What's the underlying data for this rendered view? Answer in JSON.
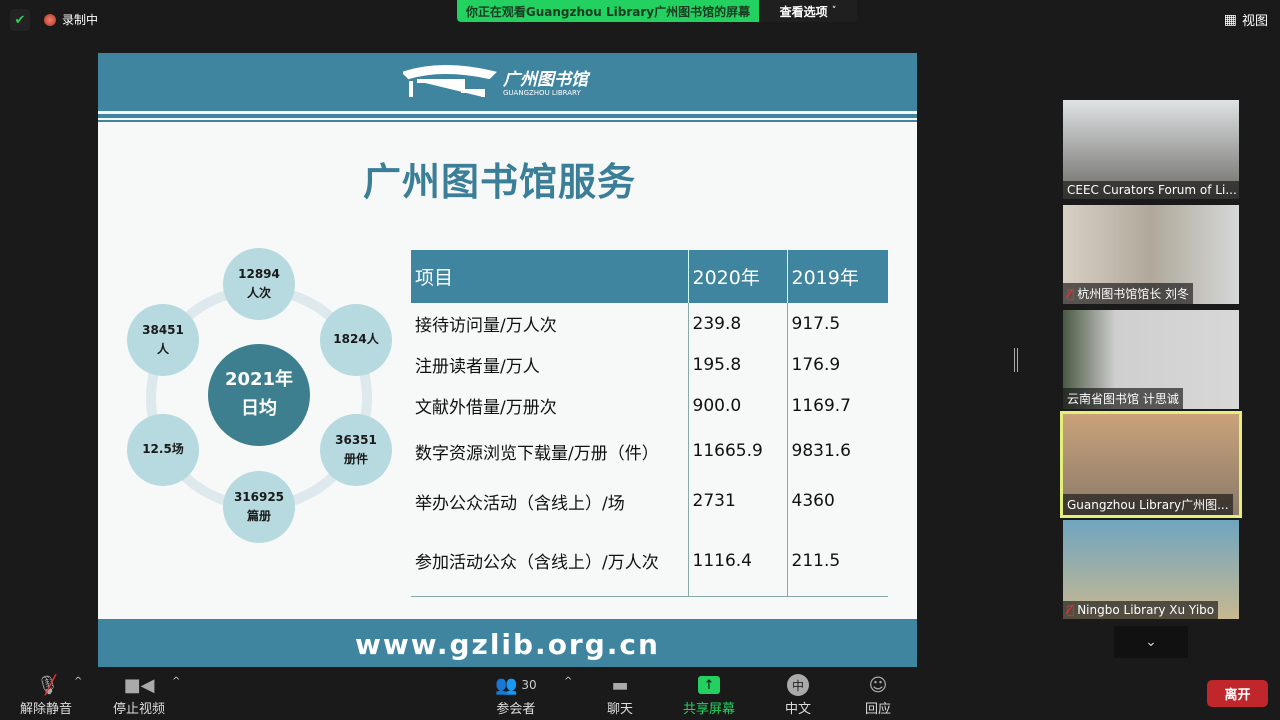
{
  "top": {
    "recording": "录制中",
    "banner": "你正在观看Guangzhou  Library广州图书馆的屏幕",
    "view_options": "查看选项",
    "view": "视图"
  },
  "slide": {
    "logo_cn": "广州图书馆",
    "logo_en": "GUANGZHOU LIBRARY",
    "title": "广州图书馆服务",
    "center": [
      "2021年",
      "日均"
    ],
    "circles": [
      [
        "12894",
        "人次"
      ],
      [
        "1824人",
        ""
      ],
      [
        "36351",
        "册件"
      ],
      [
        "316925",
        "篇册"
      ],
      [
        "12.5场",
        ""
      ],
      [
        "38451",
        "人"
      ]
    ],
    "table": {
      "headers": [
        "项目",
        "2020年",
        "2019年"
      ],
      "rows": [
        [
          "接待访问量/万人次",
          "239.8",
          "917.5"
        ],
        [
          "注册读者量/万人",
          "195.8",
          "176.9"
        ],
        [
          "文献外借量/万册次",
          "900.0",
          "1169.7"
        ],
        [
          "数字资源浏览下载量/万册（件）",
          "11665.9",
          "9831.6"
        ],
        [
          "举办公众活动（含线上）/场",
          "2731",
          "4360"
        ],
        [
          "参加活动公众（含线上）/万人次",
          "1116.4",
          "211.5"
        ]
      ]
    },
    "footer": "www.gzlib.org.cn"
  },
  "participants": [
    {
      "name": "CEEC Curators Forum of Li...",
      "muted": false
    },
    {
      "name": "杭州图书馆馆长 刘冬",
      "muted": true
    },
    {
      "name": "云南省图书馆 计思诚",
      "muted": false
    },
    {
      "name": "Guangzhou Library广州图...",
      "muted": false,
      "active": true
    },
    {
      "name": "Ningbo Library Xu Yibo",
      "muted": true
    }
  ],
  "toolbar": {
    "unmute": "解除静音",
    "stop_video": "停止视频",
    "participants": "参会者",
    "participant_count": "30",
    "chat": "聊天",
    "share": "共享屏幕",
    "language": "中文",
    "language_icon": "中",
    "reactions": "回应",
    "leave": "离开"
  },
  "colors": {
    "accent_green": "#23d160",
    "slide_blue": "#3f85a0",
    "leave_red": "#c0272d"
  }
}
